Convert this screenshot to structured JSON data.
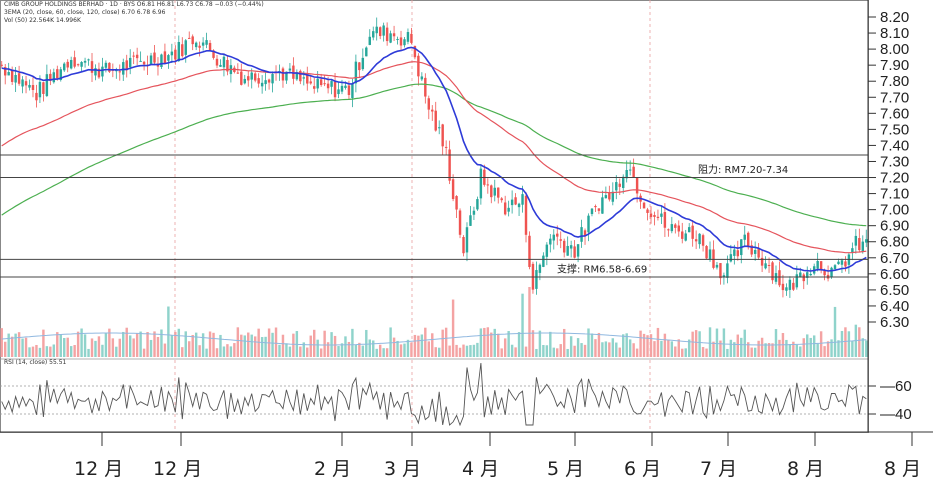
{
  "header": {
    "ticker_line": "CIMB GROUP HOLDINGS BERHAD · 1D · BYS   O6.81 H6.81 L6.73 C6.78 −0.03 (−0.44%)",
    "ma_line": "3EMA (20, close, 60, close, 120, close)  6.70  6.78  6.96",
    "vol_line": "Vol (50)  22.564K  14.996K",
    "rsi_line": "RSI (14, close)  55.51"
  },
  "annotations": {
    "resistance": "阻力: RM7.20-7.34",
    "support": "支撑: RM6.58-6.69"
  },
  "colors": {
    "up": "#26a69a",
    "down": "#ef5350",
    "ema20": "#2e3bd8",
    "ema60": "#e5545c",
    "ema120": "#4caf50",
    "rsi": "#555555",
    "hline": "#444444"
  },
  "chart_data": {
    "type": "candlestick",
    "title": "CIMB GROUP HOLDINGS BERHAD",
    "y_ticks": [
      "8.20",
      "8.10",
      "8.00",
      "7.90",
      "7.80",
      "7.70",
      "7.60",
      "7.50",
      "7.40",
      "7.30",
      "7.20",
      "7.10",
      "7.00",
      "6.90",
      "6.80",
      "6.70",
      "6.60",
      "6.50",
      "6.40",
      "6.30"
    ],
    "ylim": [
      6.3,
      8.2
    ],
    "rsi_ticks": [
      "60",
      "40"
    ],
    "rsi_ylim": [
      18,
      72
    ],
    "x_tick_labels": [
      "12 月",
      "12 月",
      "2 月",
      "3 月",
      "4 月",
      "5 月",
      "6 月",
      "7 月",
      "8 月",
      "8 月"
    ],
    "horizontal_levels": [
      7.34,
      7.2,
      6.69,
      6.58
    ],
    "price_path_keypoints": [
      [
        0,
        7.9
      ],
      [
        10,
        7.72
      ],
      [
        20,
        7.95
      ],
      [
        30,
        7.86
      ],
      [
        40,
        7.92
      ],
      [
        50,
        7.98
      ],
      [
        56,
        8.08
      ],
      [
        62,
        7.95
      ],
      [
        70,
        7.82
      ],
      [
        80,
        7.86
      ],
      [
        90,
        7.76
      ],
      [
        100,
        7.75
      ],
      [
        106,
        8.1
      ],
      [
        112,
        8.1
      ],
      [
        118,
        8.05
      ],
      [
        122,
        7.7
      ],
      [
        128,
        7.35
      ],
      [
        133,
        6.75
      ],
      [
        138,
        7.2
      ],
      [
        145,
        7.02
      ],
      [
        150,
        7.05
      ],
      [
        153,
        6.52
      ],
      [
        158,
        6.85
      ],
      [
        165,
        6.75
      ],
      [
        172,
        7.05
      ],
      [
        176,
        7.1
      ],
      [
        180,
        7.3
      ],
      [
        185,
        7.05
      ],
      [
        192,
        6.88
      ],
      [
        200,
        6.85
      ],
      [
        208,
        6.6
      ],
      [
        214,
        6.8
      ],
      [
        220,
        6.68
      ],
      [
        226,
        6.5
      ],
      [
        234,
        6.68
      ],
      [
        240,
        6.6
      ],
      [
        246,
        6.78
      ]
    ],
    "ema_start_values": {
      "ema20": 7.88,
      "ema60": 7.38,
      "ema120": 6.95
    },
    "series": []
  }
}
